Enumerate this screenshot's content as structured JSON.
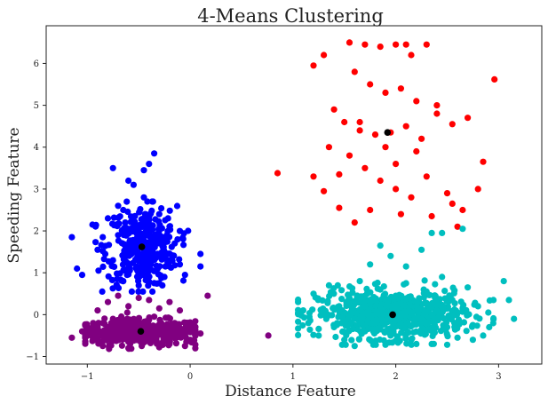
{
  "chart_data": {
    "type": "scatter",
    "title": "4-Means Clustering",
    "xlabel": "Distance Feature",
    "ylabel": "Speeding Feature",
    "xlim": [
      -1.4,
      3.42
    ],
    "ylim": [
      -1.18,
      6.9
    ],
    "xticks": [
      -1,
      0,
      1,
      2,
      3
    ],
    "yticks": [
      -1,
      0,
      1,
      2,
      3,
      4,
      5,
      6
    ],
    "grid": false,
    "legend": "none",
    "series": [
      {
        "color": "#800080",
        "points": [
          [
            -1.0,
            -0.5
          ],
          [
            -0.95,
            -0.3
          ],
          [
            -0.9,
            -0.6
          ],
          [
            -0.85,
            -0.2
          ],
          [
            -0.8,
            -0.45
          ],
          [
            -0.75,
            -0.1
          ],
          [
            -0.7,
            -0.55
          ],
          [
            -0.65,
            -0.35
          ],
          [
            -0.6,
            -0.65
          ],
          [
            -0.55,
            -0.15
          ],
          [
            -0.5,
            -0.4
          ],
          [
            -0.45,
            -0.25
          ],
          [
            -0.4,
            -0.6
          ],
          [
            -0.35,
            -0.05
          ],
          [
            -0.3,
            -0.45
          ],
          [
            -0.25,
            -0.3
          ],
          [
            -0.2,
            -0.7
          ],
          [
            -0.15,
            -0.2
          ],
          [
            -0.1,
            -0.5
          ],
          [
            -0.05,
            -0.35
          ],
          [
            0.0,
            -0.6
          ],
          [
            -0.9,
            0.1
          ],
          [
            -0.8,
            0.3
          ],
          [
            -0.7,
            0.45
          ],
          [
            -0.6,
            0.2
          ],
          [
            -0.5,
            0.4
          ],
          [
            -0.4,
            0.35
          ],
          [
            -0.3,
            0.15
          ],
          [
            -0.2,
            0.3
          ],
          [
            -0.1,
            0.1
          ],
          [
            0.17,
            0.45
          ],
          [
            0.1,
            -0.45
          ],
          [
            -1.15,
            -0.55
          ],
          [
            -1.05,
            -0.4
          ],
          [
            0.76,
            -0.5
          ],
          [
            -0.85,
            -0.75
          ],
          [
            -0.6,
            -0.8
          ],
          [
            -0.3,
            -0.78
          ],
          [
            -0.05,
            -0.75
          ]
        ],
        "centroid": [
          -0.48,
          -0.4
        ]
      },
      {
        "color": "#0000ff",
        "points": [
          [
            -0.85,
            1.85
          ],
          [
            -0.8,
            2.3
          ],
          [
            -0.75,
            1.3
          ],
          [
            -0.7,
            2.6
          ],
          [
            -0.65,
            0.8
          ],
          [
            -0.6,
            3.2
          ],
          [
            -0.55,
            1.6
          ],
          [
            -0.5,
            2.0
          ],
          [
            -0.45,
            1.1
          ],
          [
            -0.4,
            3.6
          ],
          [
            -0.35,
            1.4
          ],
          [
            -0.3,
            2.4
          ],
          [
            -0.25,
            0.9
          ],
          [
            -0.2,
            2.1
          ],
          [
            -0.15,
            1.7
          ],
          [
            -0.1,
            1.2
          ],
          [
            -0.05,
            0.95
          ],
          [
            -0.6,
            1.0
          ],
          [
            -0.45,
            2.8
          ],
          [
            -0.35,
            3.85
          ],
          [
            -0.55,
            3.1
          ],
          [
            -0.75,
            3.5
          ],
          [
            -0.7,
            1.9
          ],
          [
            -0.5,
            0.7
          ],
          [
            -0.3,
            1.85
          ],
          [
            -0.2,
            1.3
          ],
          [
            -1.15,
            1.85
          ],
          [
            -1.1,
            1.1
          ],
          [
            -1.05,
            0.95
          ],
          [
            -0.95,
            2.15
          ],
          [
            -0.9,
            1.55
          ],
          [
            -0.45,
            3.45
          ],
          [
            0.1,
            1.45
          ],
          [
            0.1,
            1.15
          ],
          [
            -0.65,
            2.5
          ]
        ],
        "centroid": [
          -0.47,
          1.62
        ]
      },
      {
        "color": "#ff0000",
        "points": [
          [
            1.55,
            6.5
          ],
          [
            1.7,
            6.45
          ],
          [
            1.85,
            6.4
          ],
          [
            2.0,
            6.45
          ],
          [
            2.1,
            6.45
          ],
          [
            2.3,
            6.45
          ],
          [
            2.15,
            6.2
          ],
          [
            1.6,
            5.8
          ],
          [
            1.75,
            5.5
          ],
          [
            1.9,
            5.3
          ],
          [
            2.05,
            5.4
          ],
          [
            2.2,
            5.1
          ],
          [
            2.4,
            5.0
          ],
          [
            1.2,
            5.95
          ],
          [
            1.3,
            6.2
          ],
          [
            1.4,
            4.9
          ],
          [
            1.5,
            4.6
          ],
          [
            1.65,
            4.4
          ],
          [
            1.8,
            4.3
          ],
          [
            1.95,
            4.35
          ],
          [
            2.1,
            4.5
          ],
          [
            2.25,
            4.2
          ],
          [
            2.4,
            4.8
          ],
          [
            2.55,
            4.55
          ],
          [
            2.7,
            4.7
          ],
          [
            1.35,
            4.0
          ],
          [
            1.55,
            3.8
          ],
          [
            1.7,
            3.5
          ],
          [
            1.85,
            3.2
          ],
          [
            2.0,
            3.0
          ],
          [
            2.15,
            2.8
          ],
          [
            2.3,
            3.3
          ],
          [
            2.5,
            2.9
          ],
          [
            2.65,
            2.5
          ],
          [
            2.8,
            3.0
          ],
          [
            2.85,
            3.65
          ],
          [
            2.96,
            5.62
          ],
          [
            1.2,
            3.3
          ],
          [
            1.3,
            2.95
          ],
          [
            1.45,
            2.55
          ],
          [
            1.6,
            2.2
          ],
          [
            1.75,
            2.5
          ],
          [
            2.05,
            2.4
          ],
          [
            2.35,
            2.35
          ],
          [
            2.55,
            2.65
          ],
          [
            0.85,
            3.38
          ],
          [
            1.65,
            4.6
          ],
          [
            1.9,
            4.0
          ],
          [
            2.0,
            3.6
          ],
          [
            2.2,
            3.9
          ],
          [
            1.45,
            3.35
          ],
          [
            2.6,
            2.1
          ]
        ],
        "centroid": [
          1.92,
          4.35
        ]
      },
      {
        "color": "#00bfbf",
        "points": [
          [
            1.05,
            0.3
          ],
          [
            1.1,
            0.1
          ],
          [
            1.15,
            -0.2
          ],
          [
            1.2,
            0.5
          ],
          [
            1.25,
            -0.5
          ],
          [
            1.3,
            0.0
          ],
          [
            1.35,
            0.7
          ],
          [
            1.4,
            -0.3
          ],
          [
            1.45,
            0.2
          ],
          [
            1.5,
            -0.6
          ],
          [
            1.55,
            0.4
          ],
          [
            1.6,
            -0.1
          ],
          [
            1.65,
            0.8
          ],
          [
            1.7,
            -0.4
          ],
          [
            1.75,
            0.3
          ],
          [
            1.8,
            -0.7
          ],
          [
            1.85,
            0.6
          ],
          [
            1.9,
            0.0
          ],
          [
            1.95,
            -0.5
          ],
          [
            2.0,
            0.45
          ],
          [
            2.05,
            -0.2
          ],
          [
            2.1,
            0.75
          ],
          [
            2.15,
            -0.6
          ],
          [
            2.2,
            0.2
          ],
          [
            2.25,
            -0.35
          ],
          [
            2.3,
            0.55
          ],
          [
            2.35,
            -0.7
          ],
          [
            2.4,
            0.1
          ],
          [
            2.45,
            0.9
          ],
          [
            2.5,
            -0.3
          ],
          [
            2.55,
            0.35
          ],
          [
            2.6,
            -0.55
          ],
          [
            2.65,
            0.15
          ],
          [
            2.7,
            0.65
          ],
          [
            2.75,
            -0.25
          ],
          [
            2.8,
            0.2
          ],
          [
            2.85,
            -0.5
          ],
          [
            2.9,
            0.05
          ],
          [
            2.95,
            0.35
          ],
          [
            3.05,
            0.8
          ],
          [
            3.15,
            -0.1
          ],
          [
            3.1,
            0.35
          ],
          [
            1.85,
            1.65
          ],
          [
            1.95,
            1.4
          ],
          [
            2.1,
            1.15
          ],
          [
            2.25,
            1.55
          ],
          [
            2.35,
            1.95
          ],
          [
            2.45,
            1.95
          ],
          [
            2.65,
            2.05
          ],
          [
            1.75,
            1.2
          ],
          [
            1.6,
            -0.75
          ],
          [
            1.9,
            -0.72
          ],
          [
            2.2,
            -0.7
          ],
          [
            2.5,
            -0.72
          ],
          [
            2.75,
            -0.6
          ]
        ],
        "centroid": [
          1.97,
          0.0
        ]
      }
    ],
    "centroid_color": "#000000",
    "dense_blobs": [
      {
        "series": 0,
        "cx": -0.48,
        "cy": -0.42,
        "sx": 0.3,
        "sy": 0.15,
        "n": 420,
        "xmin": -1.02,
        "xmax": 0.05,
        "ymin": -0.82,
        "ymax": 0.05
      },
      {
        "series": 1,
        "cx": -0.47,
        "cy": 1.62,
        "sx": 0.17,
        "sy": 0.48,
        "n": 360,
        "xmin": -0.92,
        "xmax": -0.02,
        "ymin": 0.55,
        "ymax": 2.7
      },
      {
        "series": 3,
        "cx": 1.97,
        "cy": 0.0,
        "sx": 0.36,
        "sy": 0.28,
        "n": 650,
        "xmin": 1.05,
        "xmax": 2.95,
        "ymin": -0.72,
        "ymax": 0.95
      }
    ]
  }
}
